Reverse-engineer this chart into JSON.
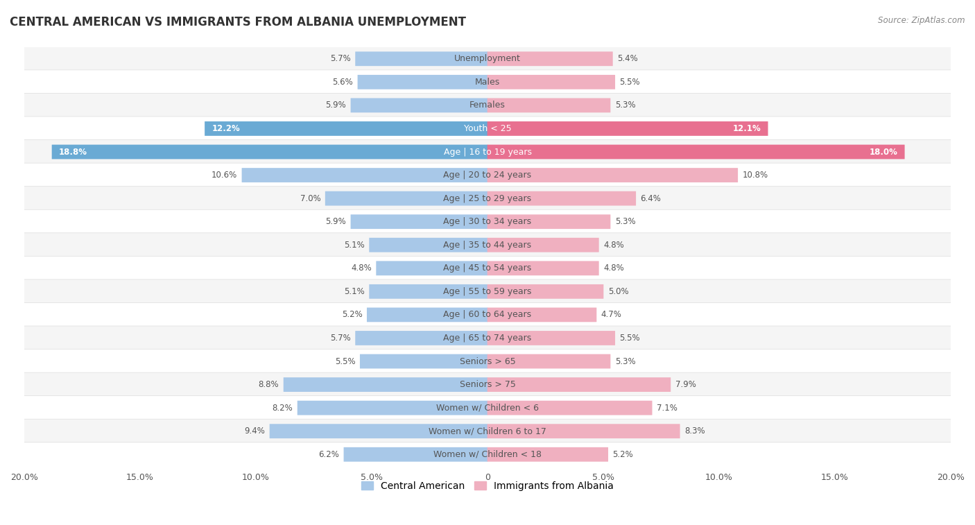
{
  "title": "CENTRAL AMERICAN VS IMMIGRANTS FROM ALBANIA UNEMPLOYMENT",
  "source": "Source: ZipAtlas.com",
  "categories": [
    "Unemployment",
    "Males",
    "Females",
    "Youth < 25",
    "Age | 16 to 19 years",
    "Age | 20 to 24 years",
    "Age | 25 to 29 years",
    "Age | 30 to 34 years",
    "Age | 35 to 44 years",
    "Age | 45 to 54 years",
    "Age | 55 to 59 years",
    "Age | 60 to 64 years",
    "Age | 65 to 74 years",
    "Seniors > 65",
    "Seniors > 75",
    "Women w/ Children < 6",
    "Women w/ Children 6 to 17",
    "Women w/ Children < 18"
  ],
  "left_values": [
    5.7,
    5.6,
    5.9,
    12.2,
    18.8,
    10.6,
    7.0,
    5.9,
    5.1,
    4.8,
    5.1,
    5.2,
    5.7,
    5.5,
    8.8,
    8.2,
    9.4,
    6.2
  ],
  "right_values": [
    5.4,
    5.5,
    5.3,
    12.1,
    18.0,
    10.8,
    6.4,
    5.3,
    4.8,
    4.8,
    5.0,
    4.7,
    5.5,
    5.3,
    7.9,
    7.1,
    8.3,
    5.2
  ],
  "left_color_normal": "#a8c8e8",
  "right_color_normal": "#f0b0c0",
  "left_color_highlight": "#6aaad4",
  "right_color_highlight": "#e87090",
  "left_label": "Central American",
  "right_label": "Immigrants from Albania",
  "max_val": 20.0,
  "row_bg_odd": "#f5f5f5",
  "row_bg_even": "#ffffff",
  "highlight_rows": [
    3,
    4
  ],
  "bar_height": 0.6,
  "label_fontsize": 9.0,
  "value_fontsize": 8.5,
  "title_fontsize": 12,
  "source_fontsize": 8.5,
  "background_color": "#ffffff",
  "text_color": "#555555",
  "white_text_color": "#ffffff",
  "axis_label_fontsize": 9.0
}
